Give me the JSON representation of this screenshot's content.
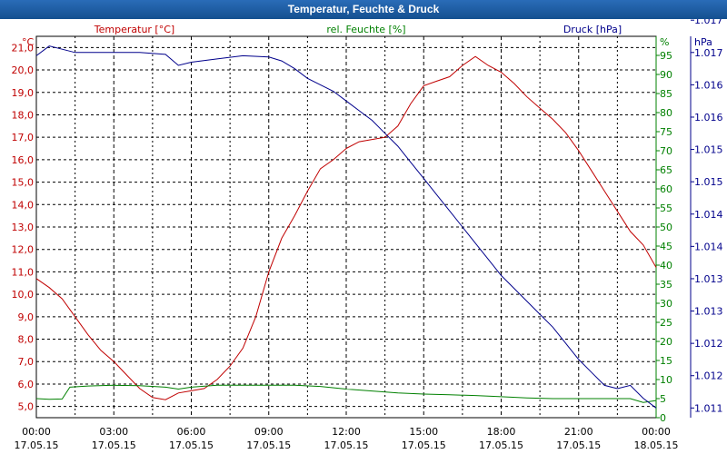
{
  "window": {
    "title": "Temperatur, Feuchte & Druck"
  },
  "chart_data": {
    "type": "line",
    "title": "Temperatur, Feuchte & Druck",
    "x": [
      "00:00",
      "03:00",
      "06:00",
      "09:00",
      "12:00",
      "15:00",
      "18:00",
      "21:00",
      "00:00"
    ],
    "x_dates": [
      "17.05.15",
      "17.05.15",
      "17.05.15",
      "17.05.15",
      "17.05.15",
      "17.05.15",
      "17.05.15",
      "17.05.15",
      "18.05.15"
    ],
    "xlim_hours": [
      0,
      24
    ],
    "axes": {
      "temperature": {
        "label": "Temperatur [°C]",
        "unit": "°C",
        "color": "#c00000",
        "ylim": [
          4.5,
          21.5
        ],
        "ticks": [
          "5,0",
          "6,0",
          "7,0",
          "8,0",
          "9,0",
          "10,0",
          "11,0",
          "12,0",
          "13,0",
          "14,0",
          "15,0",
          "16,0",
          "17,0",
          "18,0",
          "19,0",
          "20,0",
          "21,0"
        ]
      },
      "humidity": {
        "label": "rel. Feuchte [%]",
        "unit": "%",
        "color": "#008000",
        "ylim": [
          0,
          100
        ],
        "ticks": [
          "0",
          "5",
          "10",
          "15",
          "20",
          "25",
          "30",
          "35",
          "40",
          "45",
          "50",
          "55",
          "60",
          "65",
          "70",
          "75",
          "80",
          "85",
          "90",
          "95"
        ]
      },
      "pressure": {
        "label": "Druck [hPa]",
        "unit": "hPa",
        "color": "#00008b",
        "ylim": [
          1011.3,
          1017.2
        ],
        "ticks": [
          "1.011",
          "1.012",
          "1.012",
          "1.013",
          "1.013",
          "1.014",
          "1.014",
          "1.015",
          "1.015",
          "1.016",
          "1.016",
          "1.017",
          "1.017"
        ]
      }
    },
    "series": [
      {
        "name": "Temperatur",
        "axis": "temperature",
        "color": "#c00000",
        "points": [
          [
            0,
            10.7
          ],
          [
            0.5,
            10.3
          ],
          [
            1,
            9.8
          ],
          [
            1.5,
            9.0
          ],
          [
            2,
            8.2
          ],
          [
            2.5,
            7.5
          ],
          [
            3,
            7.0
          ],
          [
            3.5,
            6.4
          ],
          [
            4,
            5.8
          ],
          [
            4.5,
            5.4
          ],
          [
            5,
            5.3
          ],
          [
            5.5,
            5.6
          ],
          [
            6,
            5.7
          ],
          [
            6.5,
            5.8
          ],
          [
            7,
            6.2
          ],
          [
            7.5,
            6.8
          ],
          [
            8,
            7.6
          ],
          [
            8.5,
            9.0
          ],
          [
            9,
            11.0
          ],
          [
            9.5,
            12.5
          ],
          [
            10,
            13.5
          ],
          [
            10.5,
            14.6
          ],
          [
            11,
            15.6
          ],
          [
            11.5,
            16.0
          ],
          [
            12,
            16.5
          ],
          [
            12.5,
            16.8
          ],
          [
            13,
            16.9
          ],
          [
            13.5,
            17.0
          ],
          [
            14,
            17.5
          ],
          [
            14.5,
            18.5
          ],
          [
            15,
            19.3
          ],
          [
            15.5,
            19.5
          ],
          [
            16,
            19.7
          ],
          [
            16.5,
            20.2
          ],
          [
            17,
            20.6
          ],
          [
            17.5,
            20.2
          ],
          [
            18,
            19.9
          ],
          [
            18.5,
            19.4
          ],
          [
            19,
            18.8
          ],
          [
            19.5,
            18.3
          ],
          [
            20,
            17.8
          ],
          [
            20.5,
            17.2
          ],
          [
            21,
            16.4
          ],
          [
            21.5,
            15.5
          ],
          [
            22,
            14.6
          ],
          [
            22.5,
            13.7
          ],
          [
            23,
            12.8
          ],
          [
            23.5,
            12.2
          ],
          [
            24,
            11.2
          ]
        ]
      },
      {
        "name": "rel. Feuchte",
        "axis": "humidity",
        "color": "#008000",
        "points": [
          [
            0,
            5
          ],
          [
            0.5,
            4.8
          ],
          [
            1,
            4.9
          ],
          [
            1.3,
            8
          ],
          [
            2,
            8.3
          ],
          [
            3,
            8.5
          ],
          [
            4,
            8.4
          ],
          [
            5,
            8.0
          ],
          [
            5.5,
            7.5
          ],
          [
            6,
            8.0
          ],
          [
            7,
            8.5
          ],
          [
            8,
            8.5
          ],
          [
            9,
            8.5
          ],
          [
            10,
            8.5
          ],
          [
            11,
            8.2
          ],
          [
            12,
            7.5
          ],
          [
            13,
            7.0
          ],
          [
            14,
            6.5
          ],
          [
            15,
            6.2
          ],
          [
            16,
            6.0
          ],
          [
            17,
            5.8
          ],
          [
            18,
            5.5
          ],
          [
            19,
            5.2
          ],
          [
            20,
            5.0
          ],
          [
            21,
            5.0
          ],
          [
            22,
            5.0
          ],
          [
            23,
            5.0
          ],
          [
            23.5,
            4.0
          ],
          [
            24,
            4.5
          ]
        ]
      },
      {
        "name": "Druck",
        "axis": "pressure",
        "color": "#00008b",
        "points": [
          [
            0,
            1016.9
          ],
          [
            0.5,
            1017.05
          ],
          [
            1,
            1017.0
          ],
          [
            1.5,
            1016.95
          ],
          [
            2,
            1016.95
          ],
          [
            3,
            1016.95
          ],
          [
            4,
            1016.95
          ],
          [
            5,
            1016.92
          ],
          [
            5.5,
            1016.75
          ],
          [
            6,
            1016.8
          ],
          [
            7,
            1016.85
          ],
          [
            8,
            1016.9
          ],
          [
            9,
            1016.88
          ],
          [
            9.5,
            1016.82
          ],
          [
            10,
            1016.7
          ],
          [
            10.5,
            1016.55
          ],
          [
            11,
            1016.45
          ],
          [
            11.5,
            1016.35
          ],
          [
            12,
            1016.2
          ],
          [
            12.5,
            1016.05
          ],
          [
            13,
            1015.9
          ],
          [
            13.5,
            1015.7
          ],
          [
            14,
            1015.5
          ],
          [
            14.5,
            1015.25
          ],
          [
            15,
            1015.0
          ],
          [
            15.5,
            1014.75
          ],
          [
            16,
            1014.5
          ],
          [
            16.5,
            1014.25
          ],
          [
            17,
            1014.0
          ],
          [
            17.5,
            1013.75
          ],
          [
            18,
            1013.5
          ],
          [
            18.5,
            1013.3
          ],
          [
            19,
            1013.1
          ],
          [
            19.5,
            1012.9
          ],
          [
            20,
            1012.7
          ],
          [
            20.5,
            1012.45
          ],
          [
            21,
            1012.2
          ],
          [
            21.5,
            1012.0
          ],
          [
            22,
            1011.8
          ],
          [
            22.5,
            1011.75
          ],
          [
            23,
            1011.8
          ],
          [
            23.5,
            1011.6
          ],
          [
            24,
            1011.45
          ]
        ]
      }
    ],
    "grid": true
  }
}
